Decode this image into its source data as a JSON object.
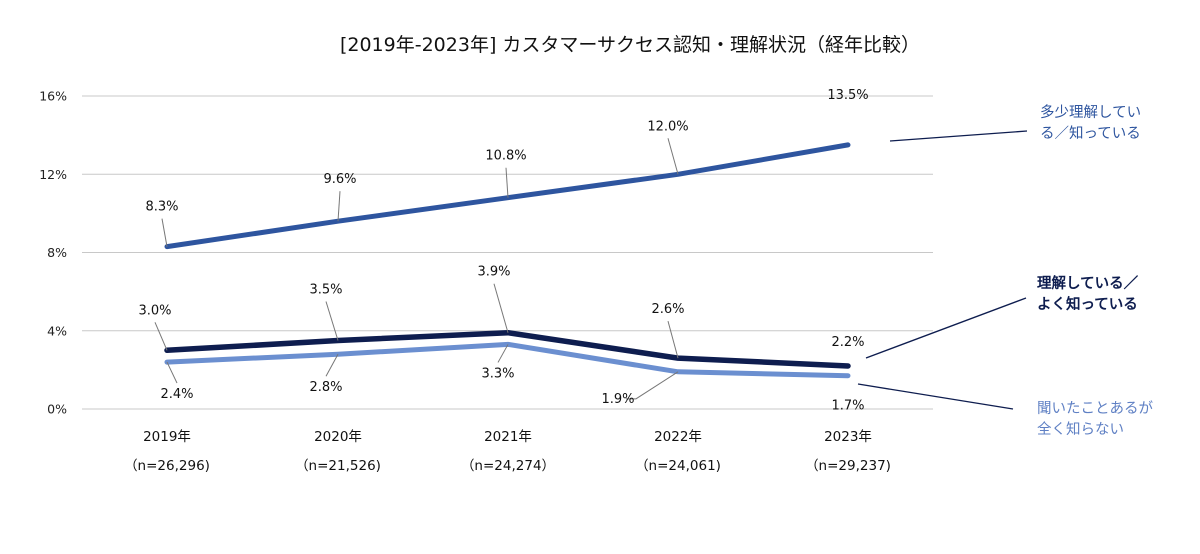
{
  "chart_data": {
    "type": "line",
    "title": "[2019年-2023年] カスタマーサクセス認知・理解状況（経年比較）",
    "xlabel": "",
    "ylabel": "",
    "categories": [
      "2019年",
      "2020年",
      "2021年",
      "2022年",
      "2023年"
    ],
    "category_sublabels": [
      "（n=26,296)",
      "（n=21,526)",
      "（n=24,274）",
      "（n=24,061)",
      "（n=29,237)"
    ],
    "ylim": [
      0,
      16
    ],
    "yticks": [
      0,
      4,
      8,
      12,
      16
    ],
    "ytick_labels": [
      "0%",
      "4%",
      "8%",
      "12%",
      "16%"
    ],
    "grid": true,
    "legend_placement": "right (callout labels)",
    "series": [
      {
        "name": "多少理解している／知っている",
        "legend_lines": [
          "多少理解してい",
          "る／知っている"
        ],
        "color": "#2e559f",
        "values": [
          8.3,
          9.6,
          10.8,
          12.0,
          13.5
        ],
        "labels": [
          "8.3%",
          "9.6%",
          "10.8%",
          "12.0%",
          "13.5%"
        ]
      },
      {
        "name": "理解している／よく知っている",
        "legend_lines": [
          "理解している／",
          "よく知っている"
        ],
        "color": "#0e1d4f",
        "values": [
          3.0,
          3.5,
          3.9,
          2.6,
          2.2
        ],
        "labels": [
          "3.0%",
          "3.5%",
          "3.9%",
          "2.6%",
          "2.2%"
        ]
      },
      {
        "name": "聞いたことあるが全く知らない",
        "legend_lines": [
          "聞いたことあるが",
          "全く知らない"
        ],
        "color": "#6b8fd0",
        "values": [
          2.4,
          2.8,
          3.3,
          1.9,
          1.7
        ],
        "labels": [
          "2.4%",
          "2.8%",
          "3.3%",
          "1.9%",
          "1.7%"
        ]
      }
    ]
  }
}
